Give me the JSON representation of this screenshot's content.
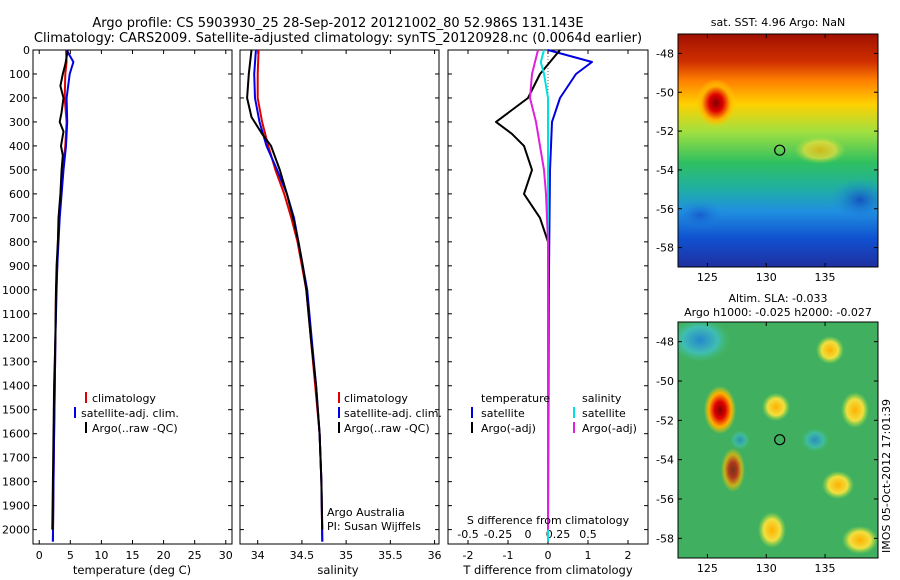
{
  "header": {
    "line1": "Argo profile: CS 5903930_25 28-Sep-2012 20121002_80 52.986S 131.143E",
    "line2": "Climatology: CARS2009. Satellite-adjusted climatology: synTS_20120928.nc (0.0064d earlier)"
  },
  "colors": {
    "climatology": "#e00000",
    "satellite": "#0000e0",
    "argo": "#000000",
    "salinity_satellite": "#00e0e0",
    "salinity_argo": "#e020e0"
  },
  "chart_data": [
    {
      "id": "temperature",
      "type": "line",
      "xlabel": "temperature (deg C)",
      "xlim": [
        -1,
        31
      ],
      "ylim": [
        2060,
        0
      ],
      "x_ticks": [
        0,
        5,
        10,
        15,
        20,
        25,
        30
      ],
      "y_ticks": [
        0,
        100,
        200,
        300,
        400,
        500,
        600,
        700,
        800,
        900,
        1000,
        1100,
        1200,
        1300,
        1400,
        1500,
        1600,
        1700,
        1800,
        1900,
        2000
      ],
      "legend": [
        "climatology",
        "satellite-adj. clim.",
        "Argo(..raw -QC)"
      ],
      "series": [
        {
          "name": "climatology",
          "color": "#e00000",
          "points": [
            [
              4.3,
              0
            ],
            [
              4.4,
              50
            ],
            [
              4.2,
              100
            ],
            [
              4.1,
              200
            ],
            [
              4.4,
              300
            ],
            [
              4.2,
              400
            ],
            [
              3.8,
              500
            ],
            [
              3.5,
              600
            ],
            [
              3.2,
              700
            ],
            [
              3.0,
              800
            ],
            [
              2.9,
              900
            ],
            [
              2.7,
              1000
            ],
            [
              2.6,
              1200
            ],
            [
              2.5,
              1400
            ],
            [
              2.4,
              1600
            ],
            [
              2.3,
              1800
            ],
            [
              2.2,
              2050
            ]
          ]
        },
        {
          "name": "satellite-adj. clim.",
          "color": "#0000e0",
          "points": [
            [
              4.4,
              0
            ],
            [
              5.5,
              50
            ],
            [
              4.9,
              100
            ],
            [
              4.4,
              200
            ],
            [
              4.5,
              300
            ],
            [
              4.3,
              400
            ],
            [
              3.9,
              500
            ],
            [
              3.6,
              600
            ],
            [
              3.3,
              700
            ],
            [
              3.1,
              800
            ],
            [
              2.9,
              900
            ],
            [
              2.8,
              1000
            ],
            [
              2.6,
              1200
            ],
            [
              2.5,
              1400
            ],
            [
              2.4,
              1600
            ],
            [
              2.3,
              1800
            ],
            [
              2.2,
              2050
            ]
          ]
        },
        {
          "name": "Argo(..raw -QC)",
          "color": "#000000",
          "points": [
            [
              4.6,
              0
            ],
            [
              4.2,
              60
            ],
            [
              3.8,
              100
            ],
            [
              3.4,
              150
            ],
            [
              3.9,
              200
            ],
            [
              3.6,
              260
            ],
            [
              3.3,
              300
            ],
            [
              3.9,
              340
            ],
            [
              3.5,
              400
            ],
            [
              3.8,
              440
            ],
            [
              3.6,
              500
            ],
            [
              3.4,
              600
            ],
            [
              3.1,
              700
            ],
            [
              3.0,
              800
            ],
            [
              2.8,
              900
            ],
            [
              2.7,
              1000
            ],
            [
              2.6,
              1200
            ],
            [
              2.4,
              1400
            ],
            [
              2.3,
              1600
            ],
            [
              2.2,
              1800
            ],
            [
              2.1,
              2000
            ]
          ]
        }
      ]
    },
    {
      "id": "salinity",
      "type": "line",
      "xlabel": "salinity",
      "xlim": [
        33.8,
        36.05
      ],
      "ylim": [
        2060,
        0
      ],
      "x_ticks": [
        34,
        34.5,
        35,
        35.5,
        36
      ],
      "legend": [
        "climatology",
        "satellite-adj. clim.",
        "Argo(..raw -QC)"
      ],
      "annotation": [
        "Argo Australia",
        "PI: Susan Wijffels"
      ],
      "series": [
        {
          "name": "climatology",
          "color": "#e00000",
          "points": [
            [
              34.01,
              0
            ],
            [
              34.0,
              100
            ],
            [
              34.0,
              200
            ],
            [
              34.05,
              300
            ],
            [
              34.12,
              400
            ],
            [
              34.2,
              500
            ],
            [
              34.3,
              600
            ],
            [
              34.38,
              700
            ],
            [
              34.45,
              800
            ],
            [
              34.5,
              900
            ],
            [
              34.55,
              1000
            ],
            [
              34.6,
              1200
            ],
            [
              34.65,
              1400
            ],
            [
              34.7,
              1600
            ],
            [
              34.72,
              1800
            ],
            [
              34.73,
              2050
            ]
          ]
        },
        {
          "name": "satellite-adj. clim.",
          "color": "#0000e0",
          "points": [
            [
              33.98,
              0
            ],
            [
              33.96,
              100
            ],
            [
              33.97,
              200
            ],
            [
              34.02,
              300
            ],
            [
              34.1,
              400
            ],
            [
              34.22,
              500
            ],
            [
              34.33,
              600
            ],
            [
              34.41,
              700
            ],
            [
              34.46,
              800
            ],
            [
              34.51,
              900
            ],
            [
              34.56,
              1000
            ],
            [
              34.61,
              1200
            ],
            [
              34.66,
              1400
            ],
            [
              34.7,
              1600
            ],
            [
              34.72,
              1800
            ],
            [
              34.73,
              2050
            ]
          ]
        },
        {
          "name": "Argo(..raw -QC)",
          "color": "#000000",
          "points": [
            [
              33.93,
              0
            ],
            [
              33.9,
              100
            ],
            [
              33.88,
              200
            ],
            [
              33.93,
              280
            ],
            [
              34.05,
              350
            ],
            [
              34.15,
              400
            ],
            [
              34.25,
              500
            ],
            [
              34.33,
              600
            ],
            [
              34.4,
              700
            ],
            [
              34.46,
              800
            ],
            [
              34.51,
              900
            ],
            [
              34.55,
              1000
            ],
            [
              34.6,
              1200
            ],
            [
              34.66,
              1400
            ],
            [
              34.7,
              1600
            ],
            [
              34.72,
              1800
            ],
            [
              34.73,
              2000
            ]
          ]
        }
      ]
    },
    {
      "id": "difference",
      "type": "line",
      "xlabel": "T difference from climatology",
      "xlabel_top": "S difference from climatology",
      "xlim": [
        -2.5,
        2.5
      ],
      "ylim": [
        2060,
        0
      ],
      "x_ticks": [
        -2,
        -1,
        0,
        1,
        2
      ],
      "x_ticks_top": [
        -0.5,
        -0.25,
        0,
        0.25,
        0.5
      ],
      "legend": {
        "temperature_title": "temperature",
        "salinity_title": "salinity",
        "entries": [
          "satellite",
          "Argo(-adj)",
          "satellite",
          "Argo(-adj)"
        ]
      },
      "series": [
        {
          "name": "temperature satellite",
          "color": "#0000e0",
          "points": [
            [
              0,
              0
            ],
            [
              1.1,
              50
            ],
            [
              0.7,
              100
            ],
            [
              0.3,
              200
            ],
            [
              0.1,
              300
            ],
            [
              0.05,
              500
            ],
            [
              0.02,
              1000
            ],
            [
              0,
              2050
            ]
          ]
        },
        {
          "name": "temperature Argo(-adj)",
          "color": "#000000",
          "points": [
            [
              0.3,
              0
            ],
            [
              -0.2,
              100
            ],
            [
              -0.5,
              200
            ],
            [
              -1.3,
              300
            ],
            [
              -0.9,
              350
            ],
            [
              -0.6,
              400
            ],
            [
              -0.4,
              500
            ],
            [
              -0.6,
              600
            ],
            [
              -0.2,
              700
            ],
            [
              0,
              800
            ],
            [
              0,
              2000
            ]
          ]
        },
        {
          "name": "salinity satellite",
          "color": "#00e0e0",
          "points": [
            [
              -0.1,
              0
            ],
            [
              -0.18,
              50
            ],
            [
              -0.1,
              100
            ],
            [
              0,
              200
            ],
            [
              0,
              2050
            ]
          ]
        },
        {
          "name": "salinity Argo(-adj)",
          "color": "#e020e0",
          "points": [
            [
              -0.25,
              0
            ],
            [
              -0.4,
              100
            ],
            [
              -0.45,
              200
            ],
            [
              -0.3,
              300
            ],
            [
              -0.2,
              400
            ],
            [
              -0.1,
              500
            ],
            [
              -0.05,
              600
            ],
            [
              0,
              800
            ],
            [
              0,
              2000
            ]
          ]
        }
      ]
    }
  ],
  "maps": {
    "sst": {
      "title": "sat. SST: 4.96 Argo: NaN",
      "lon_ticks": [
        125,
        130,
        135
      ],
      "lat_ticks": [
        -48,
        -50,
        -52,
        -54,
        -56,
        -58
      ],
      "lon_range": [
        122.5,
        139.5
      ],
      "lat_range": [
        -59,
        -47
      ],
      "marker": [
        131.143,
        -52.986
      ]
    },
    "sla": {
      "title": "Altim. SLA: -0.033",
      "subtitle": "Argo h1000: -0.025 h2000: -0.027",
      "lon_ticks": [
        125,
        130,
        135
      ],
      "lat_ticks": [
        -48,
        -50,
        -52,
        -54,
        -56,
        -58
      ],
      "lon_range": [
        122.5,
        139.5
      ],
      "lat_range": [
        -59,
        -47
      ],
      "marker": [
        131.143,
        -52.986
      ]
    }
  },
  "footer": {
    "stamp": "IMOS 05-Oct-2012 17:01:39"
  }
}
